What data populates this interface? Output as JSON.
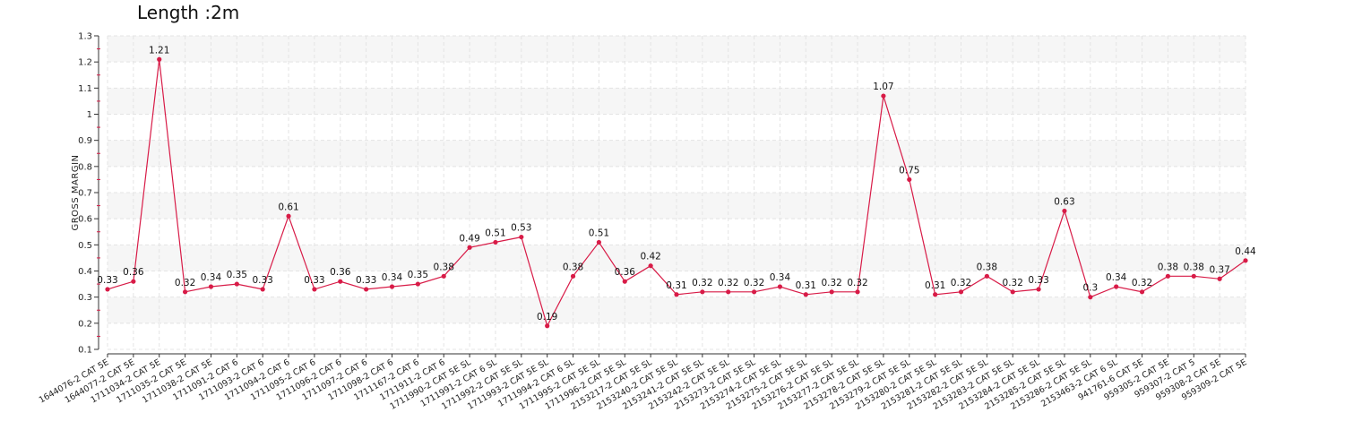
{
  "chart_data": {
    "type": "line",
    "title": "Length :2m",
    "ylabel": "GROSS MARGIN",
    "xlabel": "",
    "ylim": [
      0.1,
      1.3
    ],
    "yticks": [
      0.1,
      0.2,
      0.3,
      0.4,
      0.5,
      0.6,
      0.7,
      0.8,
      0.9,
      1,
      1.1,
      1.2,
      1.3
    ],
    "grid": true,
    "legend": "none",
    "line_color": "#d81b47",
    "categories": [
      "1644076-2 CAT 5E",
      "1644077-2 CAT 5E",
      "1711034-2 CAT 5E",
      "1711035-2 CAT 5E",
      "1711038-2 CAT 5E",
      "1711091-2 CAT 6",
      "1711093-2 CAT 6",
      "1711094-2 CAT 6",
      "1711095-2 CAT 6",
      "1711096-2 CAT 6",
      "1711097-2 CAT 6",
      "1711098-2 CAT 6",
      "1711167-2 CAT 6",
      "1711911-2 CAT 6",
      "1711990-2 CAT 5E SL",
      "1711991-2 CAT 6 SL",
      "1711992-2 CAT 5E SL",
      "1711993-2 CAT 5E SL",
      "1711994-2 CAT 6 SL",
      "1711995-2 CAT 5E SL",
      "1711996-2 CAT 5E SL",
      "2153217-2 CAT 5E SL",
      "2153240-2 CAT 5E SL",
      "2153241-2 CAT 5E SL",
      "2153242-2 CAT 5E SL",
      "2153273-2 CAT 5E SL",
      "2153274-2 CAT 5E SL",
      "2153275-2 CAT 5E SL",
      "2153276-2 CAT 5E SL",
      "2153277-2 CAT 5E SL",
      "2153278-2 CAT 5E SL",
      "2153279-2 CAT 5E SL",
      "2153280-2 CAT 5E SL",
      "2153281-2 CAT 5E SL",
      "2153282-2 CAT 5E SL",
      "2153283-2 CAT 5E SL",
      "2153284-2 CAT 5E SL",
      "2153285-2 CAT 5E SL",
      "2153286-2 CAT 5E SL",
      "2153463-2 CAT 6 SL",
      "941761-6 CAT 5E",
      "959305-2 CAT 5E",
      "959307-2 CAT 5",
      "959308-2 CAT 5E",
      "959309-2 CAT 5E"
    ],
    "values": [
      0.33,
      0.36,
      1.21,
      0.32,
      0.34,
      0.35,
      0.33,
      0.61,
      0.33,
      0.36,
      0.33,
      0.34,
      0.35,
      0.38,
      0.49,
      0.51,
      0.53,
      0.19,
      0.38,
      0.51,
      0.36,
      0.42,
      0.31,
      0.32,
      0.32,
      0.32,
      0.34,
      0.31,
      0.32,
      0.32,
      1.07,
      0.75,
      0.31,
      0.32,
      0.38,
      0.32,
      0.33,
      0.63,
      0.3,
      0.34,
      0.32,
      0.38,
      0.38,
      0.37,
      0.44
    ]
  }
}
